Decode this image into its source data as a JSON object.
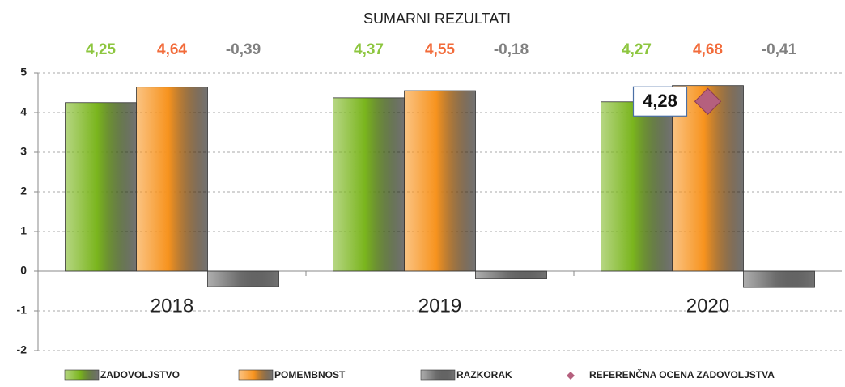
{
  "chart_data": {
    "type": "bar",
    "title": "SUMARNI REZULTATI",
    "categories": [
      "2018",
      "2019",
      "2020"
    ],
    "series": [
      {
        "name": "ZADOVOLJSTVO",
        "color": "#7ab51d",
        "label_color": "#8dc63f",
        "values": [
          4.25,
          4.37,
          4.27
        ],
        "value_labels": [
          "4,25",
          "4,37",
          "4,27"
        ]
      },
      {
        "name": "POMEMBNOST",
        "color": "#f7931e",
        "label_color": "#f26b3a",
        "values": [
          4.64,
          4.55,
          4.68
        ],
        "value_labels": [
          "4,64",
          "4,55",
          "4,68"
        ]
      },
      {
        "name": "RAZKORAK",
        "color": "#6d6d6d",
        "label_color": "#808080",
        "values": [
          -0.39,
          -0.18,
          -0.41
        ],
        "value_labels": [
          "-0,39",
          "-0,18",
          "-0,41"
        ]
      }
    ],
    "reference": {
      "type": "scatter",
      "name": "REFERENČNA OCENA ZADOVOLJSTVA",
      "color": "#b5607e",
      "values": [
        null,
        null,
        4.28
      ],
      "value_labels": [
        null,
        null,
        "4,28"
      ]
    },
    "ylim": [
      -2,
      5
    ],
    "yticks": [
      5,
      4,
      3,
      2,
      1,
      0,
      -1,
      -2
    ],
    "grid": true
  }
}
